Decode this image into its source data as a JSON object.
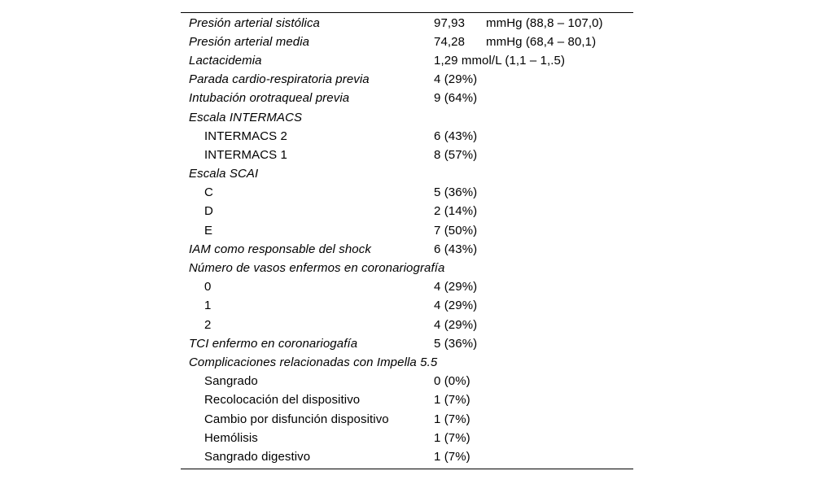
{
  "table": {
    "rows": [
      {
        "label": "Presión arterial sistólica",
        "value": "97,93",
        "unit": "mmHg (88,8 – 107,0)",
        "indent": false,
        "italic": true
      },
      {
        "label": "Presión arterial media",
        "value": "74,28",
        "unit": "mmHg (68,4 – 80,1)",
        "indent": false,
        "italic": true
      },
      {
        "label": "Lactacidemia",
        "value": "1,29 mmol/L (1,1 – 1,.5)",
        "unit": "",
        "indent": false,
        "italic": true
      },
      {
        "label": "Parada cardio-respiratoria previa",
        "value": "4 (29%)",
        "unit": "",
        "indent": false,
        "italic": true
      },
      {
        "label": "Intubación orotraqueal previa",
        "value": "9 (64%)",
        "unit": "",
        "indent": false,
        "italic": true
      },
      {
        "label": "Escala INTERMACS",
        "value": "",
        "unit": "",
        "indent": false,
        "italic": true
      },
      {
        "label": "INTERMACS 2",
        "value": "6 (43%)",
        "unit": "",
        "indent": true,
        "italic": false
      },
      {
        "label": "INTERMACS 1",
        "value": "8 (57%)",
        "unit": "",
        "indent": true,
        "italic": false
      },
      {
        "label": "Escala SCAI",
        "value": "",
        "unit": "",
        "indent": false,
        "italic": true
      },
      {
        "label": "C",
        "value": "5 (36%)",
        "unit": "",
        "indent": true,
        "italic": false
      },
      {
        "label": "D",
        "value": "2 (14%)",
        "unit": "",
        "indent": true,
        "italic": false
      },
      {
        "label": "E",
        "value": "7 (50%)",
        "unit": "",
        "indent": true,
        "italic": false
      },
      {
        "label": "IAM como responsable del shock",
        "value": "6 (43%)",
        "unit": "",
        "indent": false,
        "italic": true
      },
      {
        "label": "Número de vasos enfermos en coronariografía",
        "value": "",
        "unit": "",
        "indent": false,
        "italic": true
      },
      {
        "label": "0",
        "value": "4 (29%)",
        "unit": "",
        "indent": true,
        "italic": false
      },
      {
        "label": "1",
        "value": "4 (29%)",
        "unit": "",
        "indent": true,
        "italic": false
      },
      {
        "label": "2",
        "value": "4 (29%)",
        "unit": "",
        "indent": true,
        "italic": false
      },
      {
        "label": "TCI enfermo en coronariogafía",
        "value": "5 (36%)",
        "unit": "",
        "indent": false,
        "italic": true
      },
      {
        "label": "Complicaciones relacionadas con Impella 5.5",
        "value": "",
        "unit": "",
        "indent": false,
        "italic": true
      },
      {
        "label": "Sangrado",
        "value": "0 (0%)",
        "unit": "",
        "indent": true,
        "italic": false
      },
      {
        "label": "Recolocación del dispositivo",
        "value": "1 (7%)",
        "unit": "",
        "indent": true,
        "italic": false
      },
      {
        "label": "Cambio por disfunción dispositivo",
        "value": "1 (7%)",
        "unit": "",
        "indent": true,
        "italic": false
      },
      {
        "label": "Hemólisis",
        "value": "1 (7%)",
        "unit": "",
        "indent": true,
        "italic": false
      },
      {
        "label": "Sangrado digestivo",
        "value": "1 (7%)",
        "unit": "",
        "indent": true,
        "italic": false
      }
    ]
  },
  "colors": {
    "text": "#000000",
    "rule": "#000000",
    "background": "#ffffff"
  }
}
